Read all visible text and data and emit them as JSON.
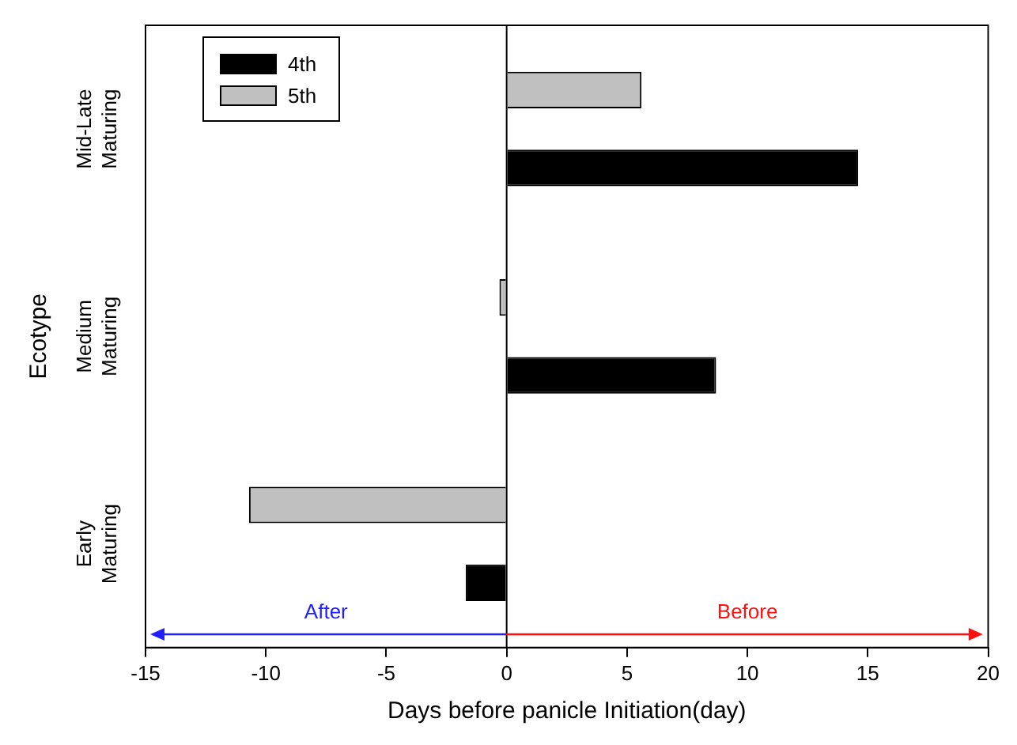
{
  "chart_data": {
    "type": "bar",
    "orientation": "horizontal",
    "xlabel": "Days before panicle Initiation(day)",
    "ylabel": "Ecotype",
    "categories": [
      "Mid-Late Maturing",
      "Medium Maturing",
      "Early Maturing"
    ],
    "series": [
      {
        "name": "4th",
        "color": "#000000",
        "values": [
          14.6,
          8.7,
          -1.7
        ]
      },
      {
        "name": "5th",
        "color": "#c0c0c0",
        "values": [
          5.6,
          -0.3,
          -10.7
        ]
      }
    ],
    "xlim": [
      -15,
      20
    ],
    "xticks": [
      -15,
      -10,
      -5,
      0,
      5,
      10,
      15,
      20
    ],
    "legend": "top left",
    "annotations": [
      "After",
      "Before"
    ]
  }
}
